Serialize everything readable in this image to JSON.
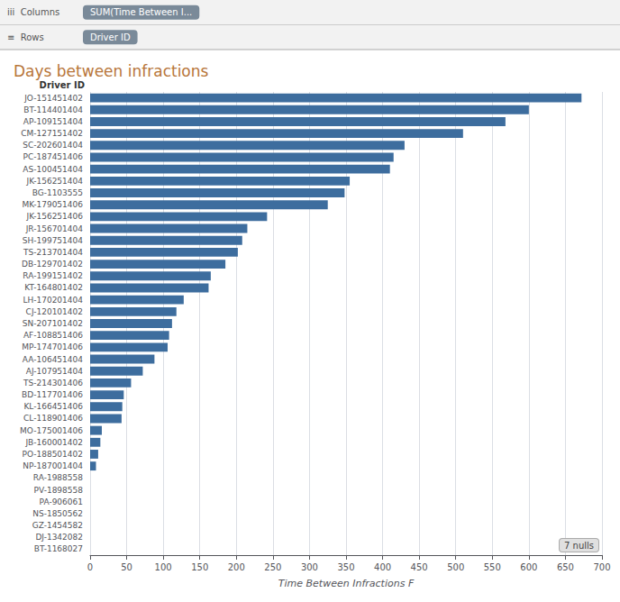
{
  "chart_data": {
    "type": "bar",
    "orientation": "horizontal",
    "title": "Days between infractions",
    "xlabel": "Time Between Infractions F",
    "ylabel": "Driver ID",
    "categories": [
      "JO-151451402",
      "BT-114401404",
      "AP-109151404",
      "CM-127151402",
      "SC-202601404",
      "PC-187451406",
      "AS-100451404",
      "JK-156251404",
      "BG-1103555",
      "MK-179051406",
      "JK-156251406",
      "JR-156701404",
      "SH-199751404",
      "TS-213701404",
      "DB-129701402",
      "RA-199151402",
      "KT-164801402",
      "LH-170201404",
      "CJ-120101402",
      "SN-207101402",
      "AF-108851406",
      "MP-174701406",
      "AA-106451404",
      "AJ-107951404",
      "TS-214301406",
      "BD-117701406",
      "KL-166451406",
      "CL-118901406",
      "MO-175001406",
      "JB-160001402",
      "PO-188501402",
      "NP-187001404",
      "RA-1988558",
      "PV-1898558",
      "PA-906061",
      "NS-1850562",
      "GZ-1454582",
      "DJ-1342082",
      "BT-1168027"
    ],
    "values": [
      672,
      600,
      568,
      510,
      430,
      415,
      410,
      355,
      348,
      325,
      242,
      215,
      208,
      202,
      185,
      165,
      162,
      128,
      118,
      112,
      108,
      106,
      88,
      72,
      56,
      46,
      44,
      43,
      16,
      14,
      11,
      8,
      0,
      0,
      0,
      0,
      0,
      0,
      0
    ],
    "color": "#3d6d9e",
    "xlim": [
      0,
      700
    ],
    "xticks": [
      0,
      50,
      100,
      150,
      200,
      250,
      300,
      350,
      400,
      450,
      500,
      550,
      600,
      650,
      700
    ],
    "grid": true,
    "annotations": [
      "iii  Columns",
      "≡  Rows",
      "SUM(Time Between I...",
      "Driver ID",
      "7 nulls"
    ]
  }
}
